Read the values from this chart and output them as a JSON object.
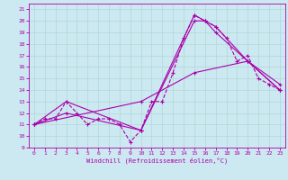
{
  "xlabel": "Windchill (Refroidissement éolien,°C)",
  "bg_color": "#cce8f0",
  "grid_color": "#b0d8d8",
  "line_color": "#aa00aa",
  "xlim": [
    -0.5,
    23.5
  ],
  "ylim": [
    9,
    21.5
  ],
  "xticks": [
    0,
    1,
    2,
    3,
    4,
    5,
    6,
    7,
    8,
    9,
    10,
    11,
    12,
    13,
    14,
    15,
    16,
    17,
    18,
    19,
    20,
    21,
    22,
    23
  ],
  "yticks": [
    9,
    10,
    11,
    12,
    13,
    14,
    15,
    16,
    17,
    18,
    19,
    20,
    21
  ],
  "series": [
    {
      "x": [
        0,
        1,
        2,
        3,
        4,
        5,
        6,
        7,
        8,
        9,
        10,
        11,
        12,
        13,
        14,
        15,
        16,
        17,
        18,
        19,
        20,
        21,
        22,
        23
      ],
      "y": [
        11,
        11.5,
        11.5,
        13,
        12,
        11,
        11.5,
        11.5,
        11,
        9.5,
        10.5,
        13,
        13,
        15.5,
        18.5,
        20.5,
        20,
        19.5,
        18.5,
        16.5,
        17,
        15,
        14.5,
        14
      ],
      "style": "--",
      "marker": "+"
    },
    {
      "x": [
        0,
        3,
        10,
        15,
        16,
        17,
        20,
        23
      ],
      "y": [
        11,
        13,
        10.5,
        20,
        20,
        19,
        16.5,
        14
      ],
      "style": "-",
      "marker": "+"
    },
    {
      "x": [
        0,
        3,
        10,
        15,
        16,
        17,
        20,
        23
      ],
      "y": [
        11,
        12,
        10.5,
        20.5,
        20,
        19.5,
        16.5,
        14.5
      ],
      "style": "-",
      "marker": "+"
    },
    {
      "x": [
        0,
        10,
        15,
        20,
        23
      ],
      "y": [
        11,
        13,
        15.5,
        16.5,
        14
      ],
      "style": "-",
      "marker": "+"
    }
  ]
}
